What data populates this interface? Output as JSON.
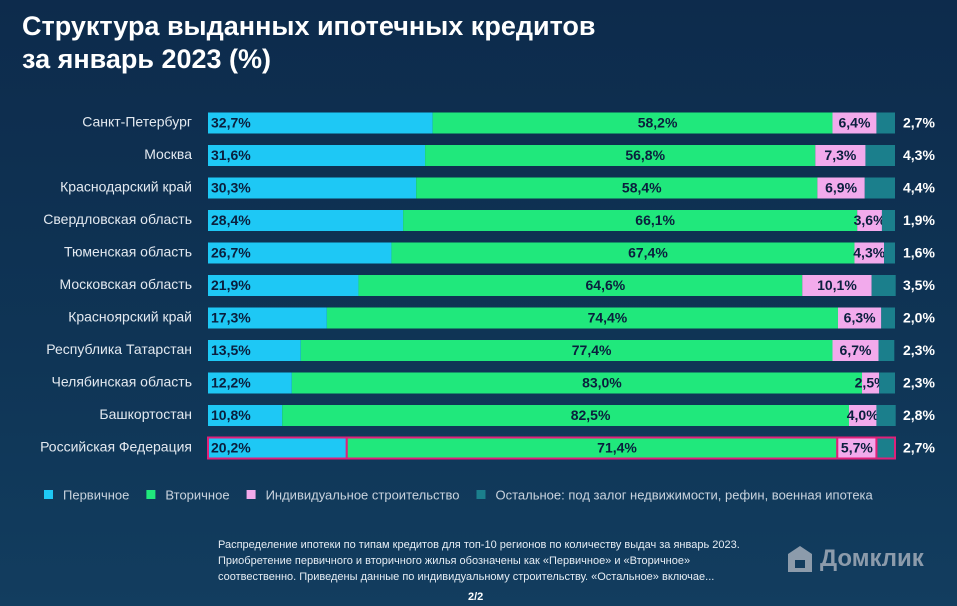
{
  "chart_data": {
    "type": "stacked-bar-horizontal",
    "title": "Структура выданных ипотечных кредитов\nза январь 2023 (%)",
    "categories": [
      "Санкт-Петербург",
      "Москва",
      "Краснодарский край",
      "Свердловская область",
      "Тюменская область",
      "Московская область",
      "Красноярский край",
      "Республика Татарстан",
      "Челябинская область",
      "Башкортостан",
      "Российская Федерация"
    ],
    "xlim": [
      0,
      100
    ],
    "series": [
      {
        "name": "Первичное",
        "color": "#1ec8f5",
        "values": [
          32.7,
          31.6,
          30.3,
          28.4,
          26.7,
          21.9,
          17.3,
          13.5,
          12.2,
          10.8,
          20.2
        ],
        "value_labels": [
          "32,7%",
          "31,6%",
          "30,3%",
          "28,4%",
          "26,7%",
          "21,9%",
          "17,3%",
          "13,5%",
          "12,2%",
          "10,8%",
          "20,2%"
        ]
      },
      {
        "name": "Вторичное",
        "color": "#20e87c",
        "values": [
          58.2,
          56.8,
          58.4,
          66.1,
          67.4,
          64.6,
          74.4,
          77.4,
          83.0,
          82.5,
          71.4
        ],
        "value_labels": [
          "58,2%",
          "56,8%",
          "58,4%",
          "66,1%",
          "67,4%",
          "64,6%",
          "74,4%",
          "77,4%",
          "83,0%",
          "82,5%",
          "71,4%"
        ]
      },
      {
        "name": "Индивидуальное строительство",
        "color": "#f2aaec",
        "values": [
          6.4,
          7.3,
          6.9,
          3.6,
          4.3,
          10.1,
          6.3,
          6.7,
          2.5,
          4.0,
          5.7
        ],
        "value_labels": [
          "6,4%",
          "7,3%",
          "6,9%",
          "3,6%",
          "4,3%",
          "10,1%",
          "6,3%",
          "6,7%",
          "2,5%",
          "4,0%",
          "5,7%"
        ]
      },
      {
        "name": "Остальное: под залог недвижимости, рефин, военная ипотека",
        "color": "#1b7f8c",
        "values": [
          2.7,
          4.3,
          4.4,
          1.9,
          1.6,
          3.5,
          2.0,
          2.3,
          2.3,
          2.8,
          2.7
        ],
        "value_labels": [
          "2,7%",
          "4,3%",
          "4,4%",
          "1,9%",
          "1,6%",
          "3,5%",
          "2,0%",
          "2,3%",
          "2,3%",
          "2,8%",
          "2,7%"
        ]
      }
    ]
  },
  "caption": "Распределение ипотеки по типам кредитов для топ-10 регионов по количеству выдач за январь 2023. Приобретение первичного и вторичного жилья обозначены как «Первичное» и «Вторичное» соотвественно. Приведены данные по индивидуальному строительству. «Остальное» включае...",
  "page_indicator": "2/2",
  "logo": "Домклик"
}
